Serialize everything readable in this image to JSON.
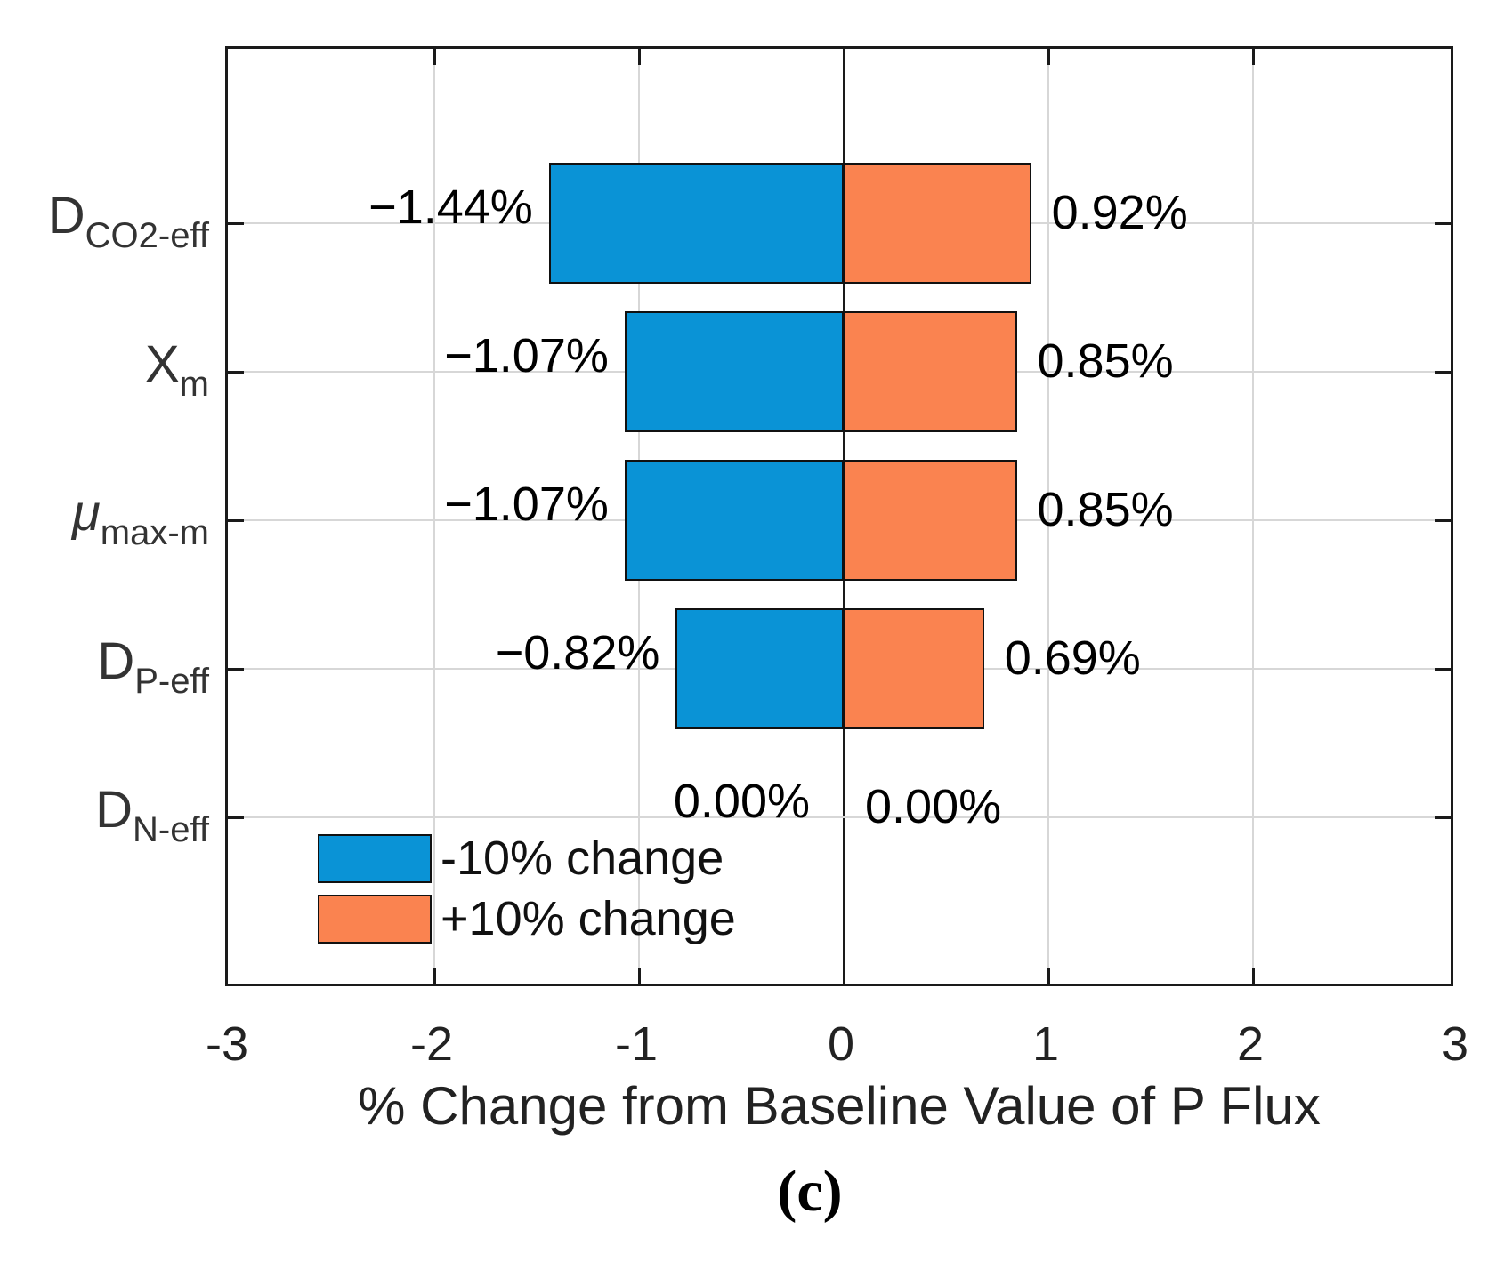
{
  "figure": {
    "caption": "(c)"
  },
  "chart_data": {
    "type": "bar",
    "orientation": "horizontal",
    "title": "",
    "xlabel": "% Change from Baseline Value of P Flux",
    "ylabel": "",
    "xlim": [
      -3,
      3
    ],
    "xticks": [
      -3,
      -2,
      -1,
      0,
      1,
      2,
      3
    ],
    "xticklabels": [
      "-3",
      "-2",
      "-1",
      "0",
      "1",
      "2",
      "3"
    ],
    "grid": true,
    "categories": [
      {
        "main": "D",
        "sub": "CO2-eff",
        "italic": false
      },
      {
        "main": "X",
        "sub": "m",
        "italic": false
      },
      {
        "main": "μ",
        "sub": "max-m",
        "italic": true
      },
      {
        "main": "D",
        "sub": "P-eff",
        "italic": false
      },
      {
        "main": "D",
        "sub": "N-eff",
        "italic": false
      }
    ],
    "series": [
      {
        "name": "-10% change",
        "color": "#0a93d6",
        "values": [
          -1.44,
          -1.07,
          -1.07,
          -0.82,
          0.0
        ],
        "data_labels": [
          "−1.44%",
          "−1.07%",
          "−1.07%",
          "−0.82%",
          "0.00%"
        ]
      },
      {
        "name": "+10% change",
        "color": "#fa8350",
        "values": [
          0.92,
          0.85,
          0.85,
          0.69,
          0.0
        ],
        "data_labels": [
          "0.92%",
          "0.85%",
          "0.85%",
          "0.69%",
          "0.00%"
        ]
      }
    ],
    "legend": {
      "position": "inside-bottom-left",
      "entries": [
        "-10% change",
        "+10% change"
      ]
    }
  }
}
